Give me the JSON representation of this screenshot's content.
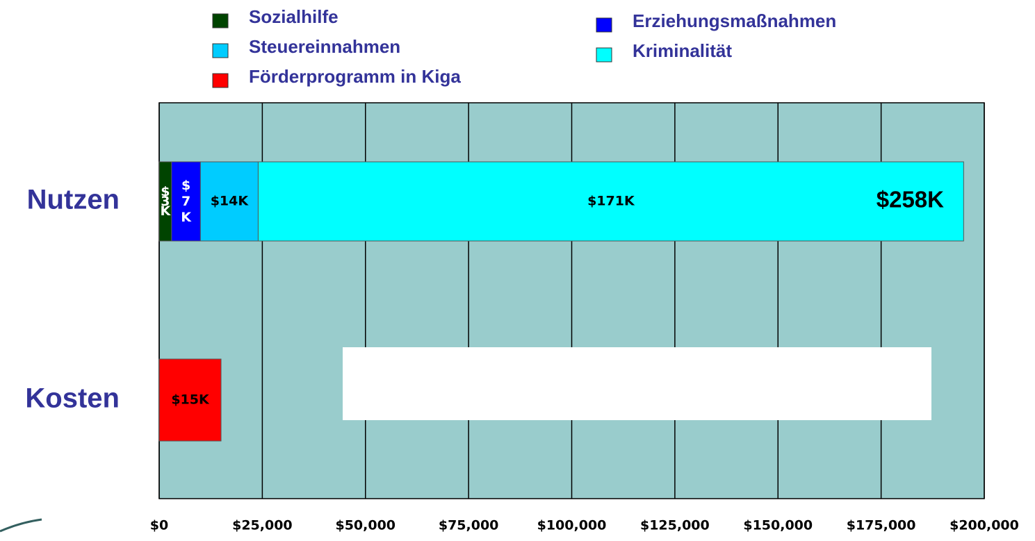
{
  "chart_data": {
    "type": "stacked_barh",
    "categories": [
      "Nutzen",
      "Kosten"
    ],
    "series": [
      {
        "name": "Sozialhilfe",
        "color": "#004400",
        "values": [
          3000,
          null
        ],
        "value_labels": [
          "$3K",
          null
        ]
      },
      {
        "name": "Erziehungsmaßnahmen",
        "color": "#0000ff",
        "values": [
          7000,
          null
        ],
        "value_labels": [
          "$7K",
          null
        ]
      },
      {
        "name": "Steuereinnahmen",
        "color": "#00ccff",
        "values": [
          14000,
          null
        ],
        "value_labels": [
          "$14K",
          null
        ]
      },
      {
        "name": "Kriminalität",
        "color": "#00ffff",
        "values": [
          171000,
          null
        ],
        "value_labels": [
          "$171K",
          null
        ]
      },
      {
        "name": "Förderprogramm in Kiga",
        "color": "#ff0000",
        "values": [
          null,
          15000
        ],
        "value_labels": [
          null,
          "$15K"
        ]
      }
    ],
    "annotations": [
      "$258K"
    ],
    "xlim": [
      0,
      200000
    ],
    "xticks": [
      {
        "value": 0,
        "label": "$0"
      },
      {
        "value": 25000,
        "label": "$25,000"
      },
      {
        "value": 50000,
        "label": "$50,000"
      },
      {
        "value": 75000,
        "label": "$75,000"
      },
      {
        "value": 100000,
        "label": "$100,000"
      },
      {
        "value": 125000,
        "label": "$125,000"
      },
      {
        "value": 150000,
        "label": "$150,000"
      },
      {
        "value": 175000,
        "label": "$175,000"
      },
      {
        "value": 200000,
        "label": "$200,000"
      }
    ],
    "grid": true,
    "background": "#99cccc"
  }
}
